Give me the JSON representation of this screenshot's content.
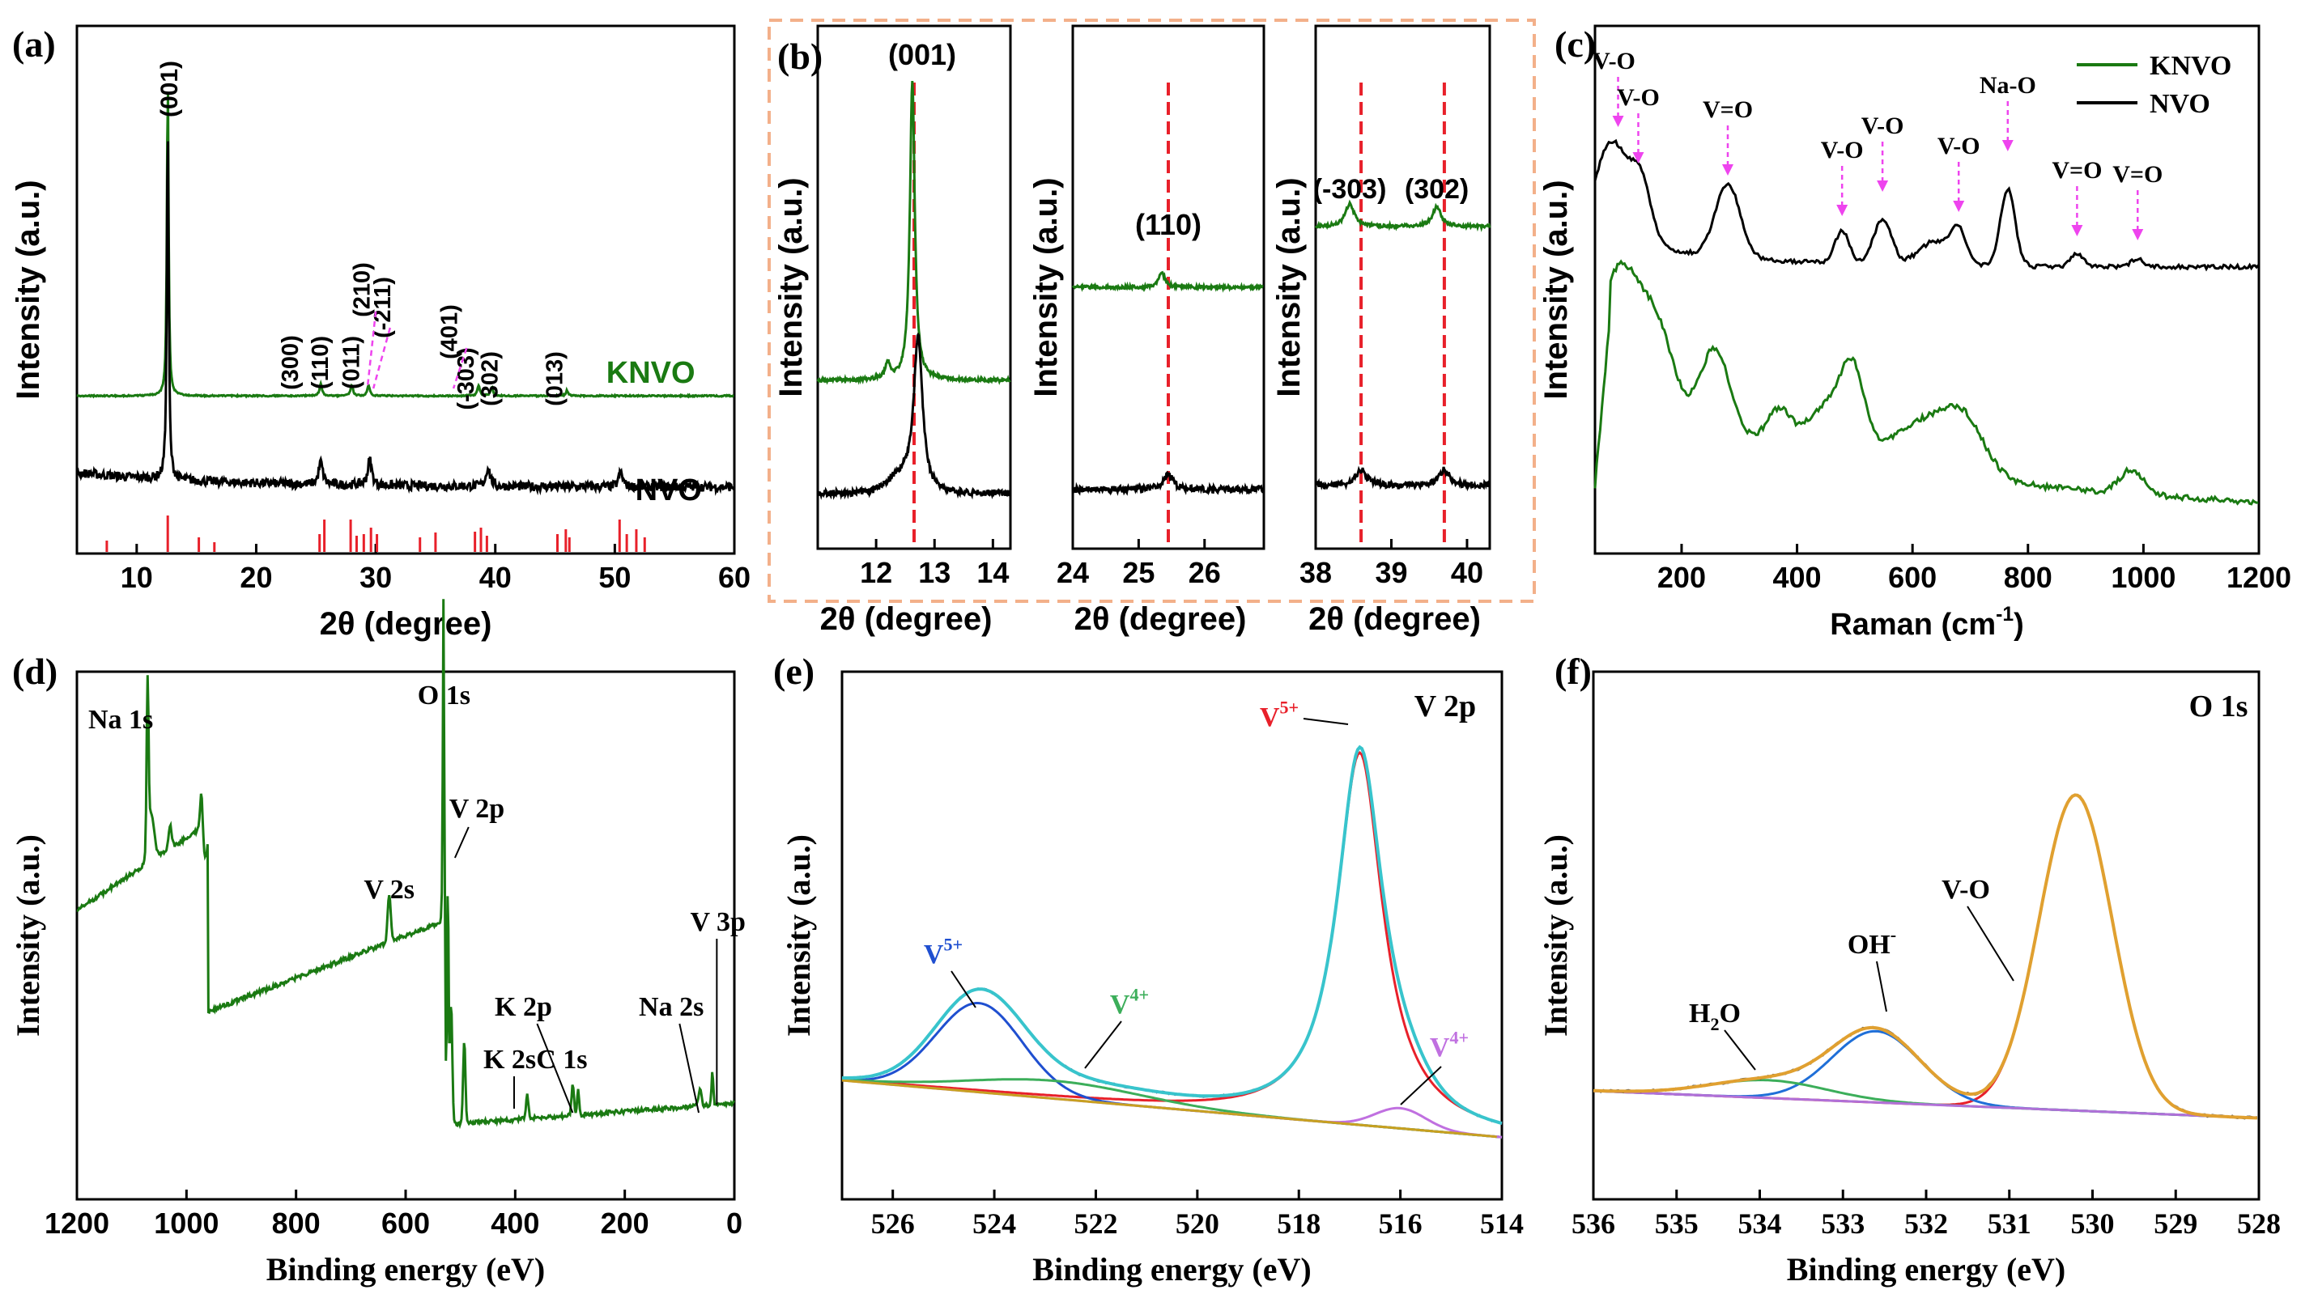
{
  "figure": {
    "panel_labels": [
      "(a)",
      "(b)",
      "(c)",
      "(d)",
      "(e)",
      "(f)"
    ],
    "colors": {
      "green": "#1a7a12",
      "black": "#000000",
      "red_line": "#e8202a",
      "magenta": "#ee44ee",
      "orange_box": "#f3b08a",
      "red_sticks": "#e8202a"
    }
  },
  "chart_data": [
    {
      "id": "a",
      "type": "line",
      "title": "",
      "xlabel": "2θ (degree)",
      "ylabel": "Intensity (a.u.)",
      "xlim": [
        5,
        60
      ],
      "xticks": [
        10,
        20,
        30,
        40,
        50,
        60
      ],
      "series": [
        {
          "name": "KNVO",
          "color": "#1a7a12",
          "peaks": [
            [
              12.6,
              18
            ],
            [
              25.4,
              0.7
            ],
            [
              28.0,
              0.6
            ],
            [
              29.4,
              0.6
            ],
            [
              38.6,
              0.6
            ],
            [
              39.7,
              0.5
            ],
            [
              46.0,
              0.3
            ]
          ]
        },
        {
          "name": "NVO",
          "color": "#000000",
          "peaks": [
            [
              12.6,
              22
            ],
            [
              25.4,
              1.4
            ],
            [
              29.5,
              1.6
            ],
            [
              39.4,
              1.2
            ],
            [
              50.5,
              0.9
            ]
          ]
        }
      ],
      "reference_sticks": [
        7.5,
        12.6,
        15.2,
        16.5,
        25.3,
        25.7,
        27.9,
        28.4,
        29.0,
        29.6,
        30.1,
        33.7,
        35.0,
        38.3,
        38.8,
        39.3,
        45.2,
        45.9,
        46.2,
        50.4,
        51.0,
        51.8,
        52.5
      ],
      "annotations": [
        "(001)",
        "(300)",
        "(110)",
        "(011)",
        "(210)",
        "(-211)",
        "(401)",
        "(-303)",
        "(302)",
        "(013)"
      ],
      "legend": [
        "KNVO",
        "NVO"
      ]
    },
    {
      "id": "b",
      "type": "line",
      "subplots": [
        {
          "xlim": [
            11,
            14.3
          ],
          "xticks": [
            12,
            13,
            14
          ],
          "peak_label": "(001)",
          "dashed_x": [
            12.65
          ],
          "xlabel": "2θ (degree)",
          "ylabel": "Intensity (a.u.)"
        },
        {
          "xlim": [
            24,
            26.9
          ],
          "xticks": [
            24,
            25,
            26
          ],
          "peak_label": "(110)",
          "dashed_x": [
            25.45
          ],
          "xlabel": "2θ (degree)",
          "ylabel": "Intensity (a.u.)"
        },
        {
          "xlim": [
            38,
            40.3
          ],
          "xticks": [
            38,
            39,
            40
          ],
          "peak_labels": [
            "(-303)",
            "(302)"
          ],
          "dashed_x": [
            38.6,
            39.7
          ],
          "xlabel": "2θ (degree)",
          "ylabel": "Intensity (a.u.)"
        }
      ]
    },
    {
      "id": "c",
      "type": "line",
      "xlabel": "Raman (cm",
      "xlabel_sup": "-1",
      "xlabel_end": ")",
      "ylabel": "Intensity (a.u.)",
      "xlim": [
        50,
        1200
      ],
      "xticks": [
        200,
        400,
        600,
        800,
        1000,
        1200
      ],
      "series": [
        {
          "name": "KNVO",
          "color": "#1a7a12"
        },
        {
          "name": "NVO",
          "color": "#000000"
        }
      ],
      "peak_labels": [
        {
          "text": "V-O",
          "x": 90
        },
        {
          "text": "V-O",
          "x": 125
        },
        {
          "text": "V=O",
          "x": 280
        },
        {
          "text": "V-O",
          "x": 478
        },
        {
          "text": "V-O",
          "x": 548
        },
        {
          "text": "V-O",
          "x": 680
        },
        {
          "text": "Na-O",
          "x": 765
        },
        {
          "text": "V=O",
          "x": 885
        },
        {
          "text": "V=O",
          "x": 990
        }
      ],
      "legend": [
        "KNVO",
        "NVO"
      ]
    },
    {
      "id": "d",
      "type": "line",
      "xlabel": "Binding energy (eV)",
      "ylabel": "Intensity (a.u.)",
      "xlim": [
        1200,
        0
      ],
      "xticks": [
        1200,
        1000,
        800,
        600,
        400,
        200,
        0
      ],
      "annotations": [
        "Na 1s",
        "O 1s",
        "V 2p",
        "V 2s",
        "K 2p",
        "K 2s",
        "C 1s",
        "Na 2s",
        "V 3p"
      ]
    },
    {
      "id": "e",
      "type": "line",
      "xlabel": "Binding energy (eV)",
      "ylabel": "Intensity (a.u.)",
      "title": "V 2p",
      "xlim": [
        527,
        514
      ],
      "xticks": [
        526,
        524,
        522,
        520,
        518,
        516,
        514
      ],
      "components": [
        {
          "label": "V",
          "sup": "5+",
          "center": 516.8,
          "color": "#e8202a"
        },
        {
          "label": "V",
          "sup": "5+",
          "center": 524.3,
          "color": "#1f4fd0"
        },
        {
          "label": "V",
          "sup": "4+",
          "center": 522.8,
          "color": "#3cae5a"
        },
        {
          "label": "V",
          "sup": "4+",
          "center": 516.0,
          "color": "#c070e0"
        }
      ]
    },
    {
      "id": "f",
      "type": "line",
      "xlabel": "Binding energy (eV)",
      "ylabel": "Intensity (a.u.)",
      "title": "O 1s",
      "xlim": [
        536,
        528
      ],
      "xticks": [
        536,
        535,
        534,
        533,
        532,
        531,
        530,
        529,
        528
      ],
      "components": [
        {
          "label": "V-O",
          "center": 530.2,
          "color": "#e8202a"
        },
        {
          "label": "OH",
          "sup": "-",
          "center": 532.6,
          "color": "#1f6fd8"
        },
        {
          "label": "H",
          "sub": "2",
          "label_end": "O",
          "center": 533.9,
          "color": "#3cae5a"
        }
      ]
    }
  ]
}
